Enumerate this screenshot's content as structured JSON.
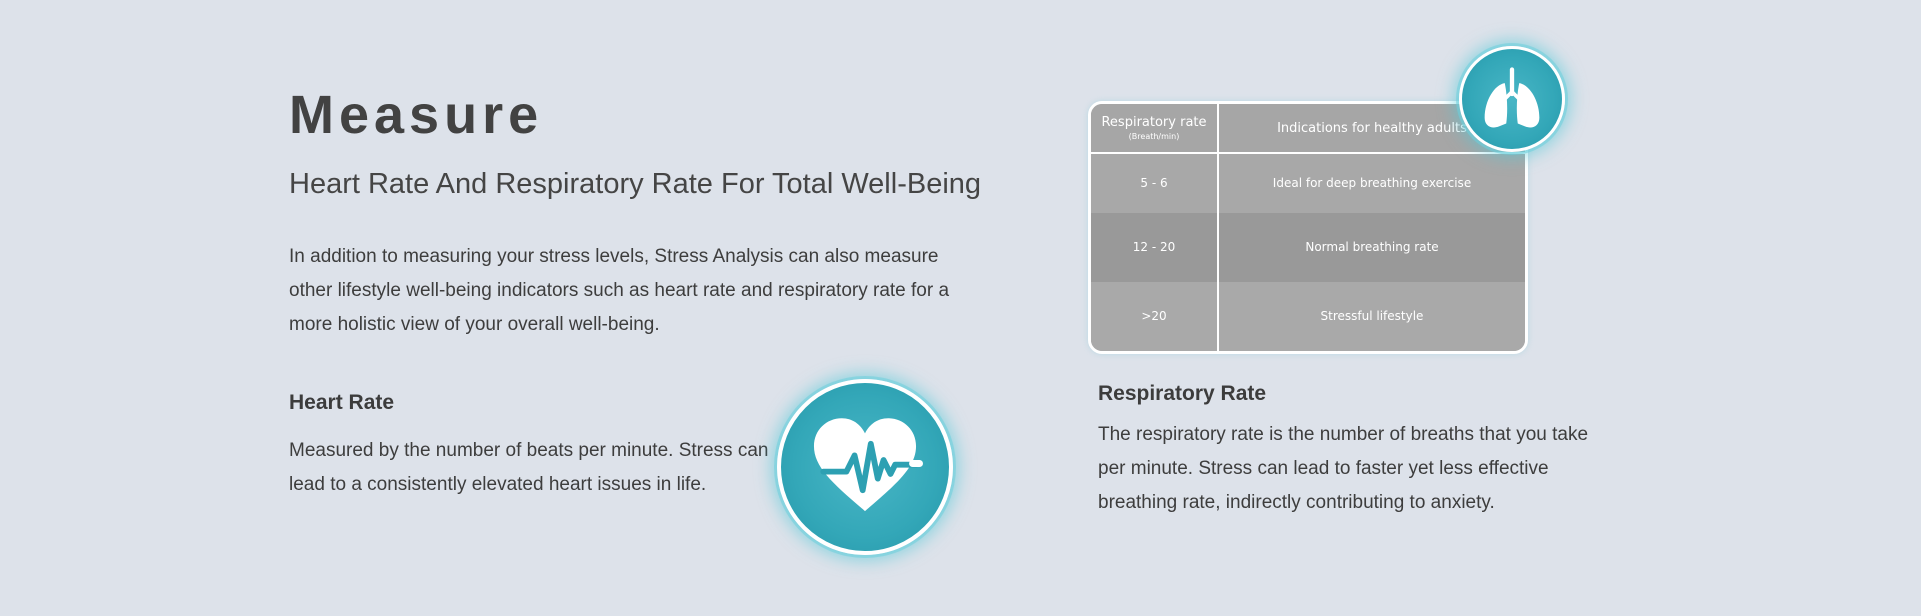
{
  "page": {
    "title": "Measure",
    "subtitle": "Heart Rate And Respiratory Rate For Total Well-Being",
    "intro": "In addition to measuring your stress levels, Stress Analysis can also measure other lifestyle well-being indicators such as heart rate and respiratory rate for a more holistic view of your overall well-being."
  },
  "heart_rate": {
    "heading": "Heart Rate",
    "text": "Measured by the number of beats per minute. Stress can lead to a consistently elevated heart issues in life.",
    "icon": "heart-pulse-icon"
  },
  "respiratory_rate": {
    "heading": "Respiratory Rate",
    "text": "The respiratory rate is the number of breaths that you take per minute. Stress can lead to faster yet less effective breathing rate, indirectly contributing to anxiety.",
    "icon": "lungs-icon"
  },
  "table": {
    "headers": {
      "rate": "Respiratory rate",
      "unit": "(Breath/min)",
      "indication": "Indications for healthy adults"
    },
    "rows": [
      {
        "rate": "5 - 6",
        "indication": "Ideal for deep breathing exercise"
      },
      {
        "rate": "12 - 20",
        "indication": "Normal breathing rate"
      },
      {
        "rate": ">20",
        "indication": "Stressful lifestyle"
      }
    ]
  },
  "colors": {
    "background": "#dde2ea",
    "accent": "#33a7b8",
    "table_cell": "#a8a8a8"
  }
}
